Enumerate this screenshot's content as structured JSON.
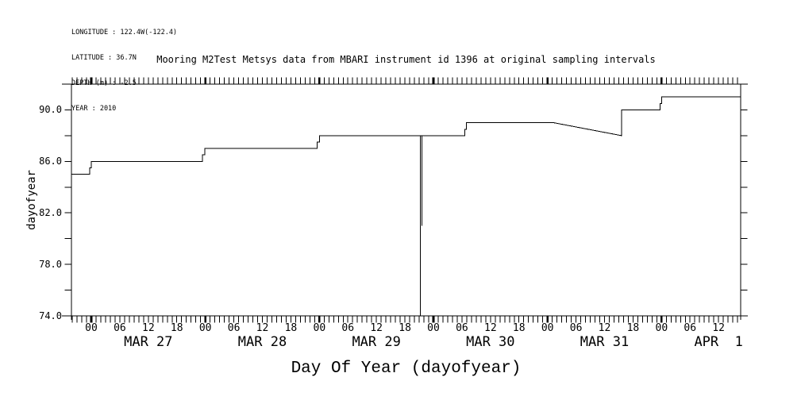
{
  "header": {
    "lines": [
      "LONGITUDE : 122.4W(-122.4)",
      "LATITUDE : 36.7N",
      "DEPTH (m) : -2.5",
      "YEAR : 2010"
    ]
  },
  "colors": {
    "line": "#000000",
    "background": "#ffffff"
  },
  "chart_data": {
    "type": "line",
    "title": "Mooring M2Test Metsys data from MBARI instrument id 1396 at original sampling intervals",
    "xlabel": "Day Of Year (dayofyear)",
    "ylabel": "dayofyear",
    "ylim": [
      74,
      92
    ],
    "y_major_ticks": [
      {
        "value": 90,
        "label": "90.0"
      },
      {
        "value": 86,
        "label": "86.0"
      },
      {
        "value": 82,
        "label": "82.0"
      },
      {
        "value": 78,
        "label": "78.0"
      },
      {
        "value": 74,
        "label": "74.0"
      }
    ],
    "y_minor_ticks": [
      76,
      80,
      84,
      88
    ],
    "x_axis": {
      "range_hours": [
        -4.18,
        136.66
      ],
      "minor_tick_step_hours": 1,
      "bold_tick_every_hours": 24,
      "hour_labels": [
        {
          "h": 0,
          "label": "00"
        },
        {
          "h": 6,
          "label": "06"
        },
        {
          "h": 12,
          "label": "12"
        },
        {
          "h": 18,
          "label": "18"
        },
        {
          "h": 24,
          "label": "00"
        },
        {
          "h": 30,
          "label": "06"
        },
        {
          "h": 36,
          "label": "12"
        },
        {
          "h": 42,
          "label": "18"
        },
        {
          "h": 48,
          "label": "00"
        },
        {
          "h": 54,
          "label": "06"
        },
        {
          "h": 60,
          "label": "12"
        },
        {
          "h": 66,
          "label": "18"
        },
        {
          "h": 72,
          "label": "00"
        },
        {
          "h": 78,
          "label": "06"
        },
        {
          "h": 84,
          "label": "12"
        },
        {
          "h": 90,
          "label": "18"
        },
        {
          "h": 96,
          "label": "00"
        },
        {
          "h": 102,
          "label": "06"
        },
        {
          "h": 108,
          "label": "12"
        },
        {
          "h": 114,
          "label": "18"
        },
        {
          "h": 120,
          "label": "00"
        },
        {
          "h": 126,
          "label": "06"
        },
        {
          "h": 132,
          "label": "12"
        }
      ],
      "day_labels": [
        {
          "h": 12,
          "label": "MAR 27"
        },
        {
          "h": 36,
          "label": "MAR 28"
        },
        {
          "h": 60,
          "label": "MAR 29"
        },
        {
          "h": 84,
          "label": "MAR 30"
        },
        {
          "h": 108,
          "label": "MAR 31"
        },
        {
          "h": 132,
          "label": "APR  1"
        }
      ]
    },
    "series": [
      {
        "name": "dayofyear",
        "points_hours_value": [
          [
            -4.18,
            85
          ],
          [
            -0.33,
            85
          ],
          [
            -0.33,
            85.5
          ],
          [
            0,
            85.5
          ],
          [
            0,
            86
          ],
          [
            23.4,
            86
          ],
          [
            23.4,
            86.5
          ],
          [
            23.9,
            86.5
          ],
          [
            23.9,
            87
          ],
          [
            47.5,
            87
          ],
          [
            47.5,
            87.5
          ],
          [
            48,
            87.5
          ],
          [
            48,
            88
          ],
          [
            78.6,
            88
          ],
          [
            78.6,
            88.5
          ],
          [
            78.9,
            88.5
          ],
          [
            78.9,
            89
          ],
          [
            97.4,
            89
          ],
          [
            111.6,
            88
          ],
          [
            111.6,
            90
          ],
          [
            119.7,
            90
          ],
          [
            119.7,
            90.5
          ],
          [
            120,
            90.5
          ],
          [
            120,
            91
          ],
          [
            136.66,
            91
          ]
        ]
      }
    ],
    "spike_segments_hours_value": [
      [
        [
          69.25,
          88
        ],
        [
          69.25,
          74
        ]
      ],
      [
        [
          69.6,
          88
        ],
        [
          69.6,
          81
        ]
      ]
    ]
  }
}
